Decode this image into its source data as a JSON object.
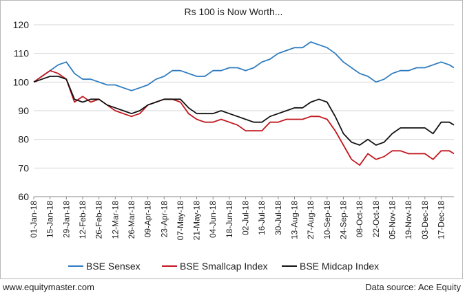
{
  "chart_data": {
    "type": "line",
    "title": "Rs 100 is Now Worth...",
    "xlabel": "",
    "ylabel": "",
    "ylim": [
      60,
      120
    ],
    "yticks": [
      60,
      70,
      80,
      90,
      100,
      110,
      120
    ],
    "xlim": [
      "2018-01-01",
      "2018-12-28"
    ],
    "xtick_labels": [
      "01-Jan-18",
      "15-Jan-18",
      "29-Jan-18",
      "12-Feb-18",
      "26-Feb-18",
      "12-Mar-18",
      "26-Mar-18",
      "09-Apr-18",
      "23-Apr-18",
      "07-May-18",
      "21-May-18",
      "04-Jun-18",
      "18-Jun-18",
      "02-Jul-18",
      "16-Jul-18",
      "30-Jul-18",
      "13-Aug-18",
      "27-Aug-18",
      "10-Sep-18",
      "24-Sep-18",
      "08-Oct-18",
      "22-Oct-18",
      "05-Nov-18",
      "19-Nov-18",
      "03-Dec-18",
      "17-Dec-18"
    ],
    "grid": "horizontal",
    "legend": "bottom",
    "x": [
      "2018-01-01",
      "2018-01-08",
      "2018-01-15",
      "2018-01-22",
      "2018-01-29",
      "2018-02-05",
      "2018-02-12",
      "2018-02-19",
      "2018-02-26",
      "2018-03-05",
      "2018-03-12",
      "2018-03-19",
      "2018-03-26",
      "2018-04-02",
      "2018-04-09",
      "2018-04-16",
      "2018-04-23",
      "2018-04-30",
      "2018-05-07",
      "2018-05-14",
      "2018-05-21",
      "2018-05-28",
      "2018-06-04",
      "2018-06-11",
      "2018-06-18",
      "2018-06-25",
      "2018-07-02",
      "2018-07-09",
      "2018-07-16",
      "2018-07-23",
      "2018-07-30",
      "2018-08-06",
      "2018-08-13",
      "2018-08-20",
      "2018-08-27",
      "2018-09-03",
      "2018-09-10",
      "2018-09-17",
      "2018-09-24",
      "2018-10-01",
      "2018-10-08",
      "2018-10-15",
      "2018-10-22",
      "2018-10-29",
      "2018-11-05",
      "2018-11-12",
      "2018-11-19",
      "2018-11-26",
      "2018-12-03",
      "2018-12-10",
      "2018-12-17",
      "2018-12-24",
      "2018-12-28"
    ],
    "series": [
      {
        "name": "BSE Sensex",
        "color": "#2e7bbf",
        "values": [
          100,
          102,
          104,
          106,
          107,
          103,
          101,
          101,
          100,
          99,
          99,
          98,
          97,
          98,
          99,
          101,
          102,
          104,
          104,
          103,
          102,
          102,
          104,
          104,
          105,
          105,
          104,
          105,
          107,
          108,
          110,
          111,
          112,
          112,
          114,
          113,
          112,
          110,
          107,
          105,
          103,
          102,
          100,
          101,
          103,
          104,
          104,
          105,
          105,
          106,
          107,
          106,
          105
        ]
      },
      {
        "name": "BSE Smallcap Index",
        "color": "#c0161c",
        "values": [
          100,
          102,
          104,
          103,
          101,
          93,
          95,
          93,
          94,
          92,
          90,
          89,
          88,
          89,
          92,
          93,
          94,
          94,
          93,
          89,
          87,
          86,
          86,
          87,
          86,
          85,
          83,
          83,
          83,
          86,
          86,
          87,
          87,
          87,
          88,
          88,
          87,
          83,
          78,
          73,
          71,
          75,
          73,
          74,
          76,
          76,
          75,
          75,
          75,
          73,
          76,
          76,
          75
        ]
      },
      {
        "name": "BSE Midcap Index",
        "color": "#111111",
        "values": [
          100,
          101,
          102,
          102,
          101,
          94,
          93,
          94,
          94,
          92,
          91,
          90,
          89,
          90,
          92,
          93,
          94,
          94,
          94,
          91,
          89,
          89,
          89,
          90,
          89,
          88,
          87,
          86,
          86,
          88,
          89,
          90,
          91,
          91,
          93,
          94,
          93,
          88,
          82,
          79,
          78,
          80,
          78,
          79,
          82,
          84,
          84,
          84,
          84,
          82,
          86,
          86,
          85
        ]
      }
    ]
  },
  "footer": {
    "left": "www.equitymaster.com",
    "right": "Data source: Ace Equity"
  }
}
